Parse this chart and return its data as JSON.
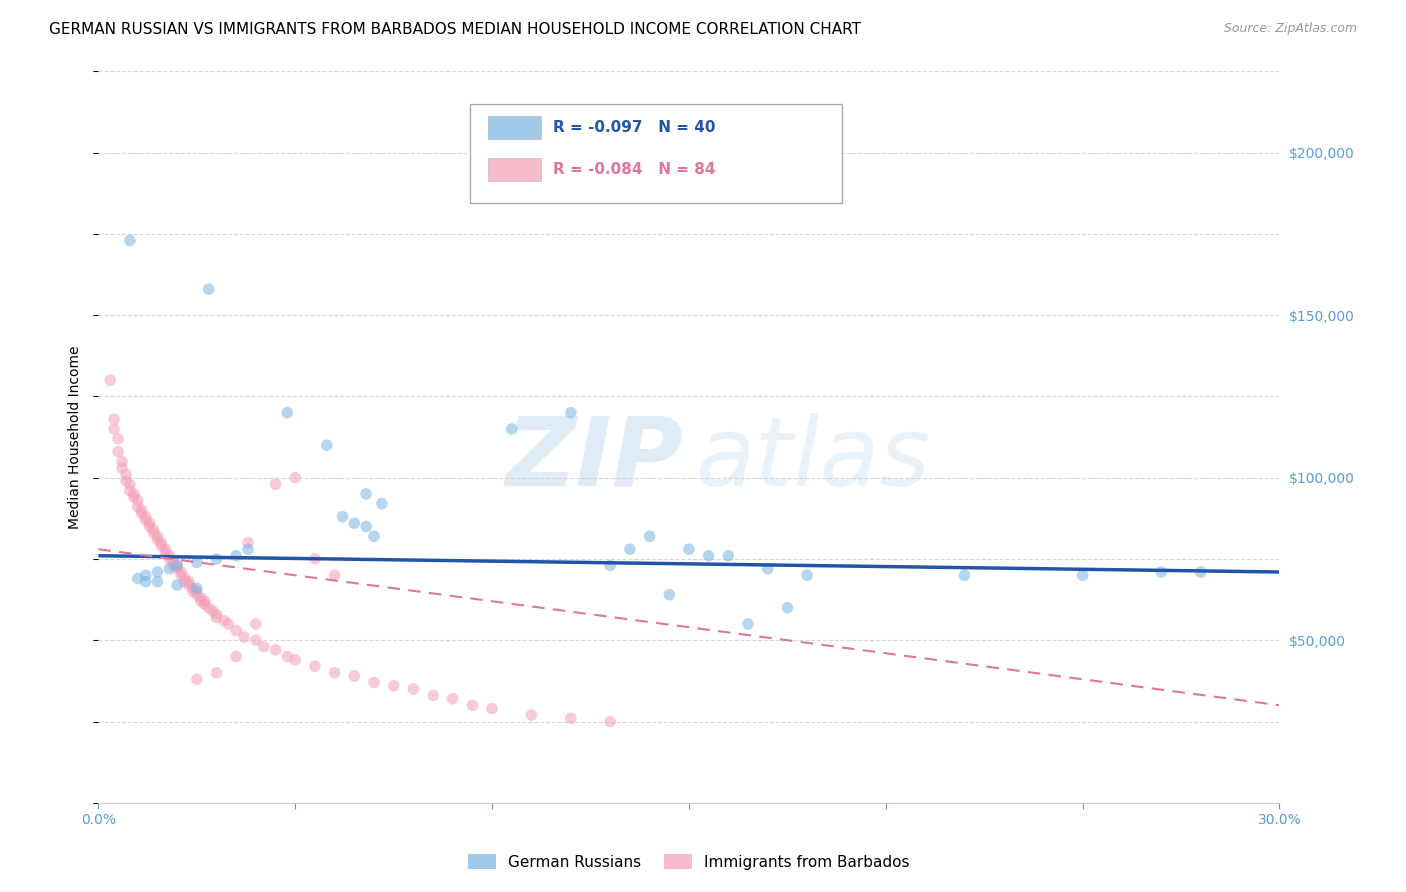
{
  "title": "GERMAN RUSSIAN VS IMMIGRANTS FROM BARBADOS MEDIAN HOUSEHOLD INCOME CORRELATION CHART",
  "source": "Source: ZipAtlas.com",
  "ylabel": "Median Household Income",
  "xlim": [
    0.0,
    0.3
  ],
  "ylim": [
    0,
    225000
  ],
  "yticks": [
    50000,
    100000,
    150000,
    200000
  ],
  "ytick_labels": [
    "$50,000",
    "$100,000",
    "$150,000",
    "$200,000"
  ],
  "xticks": [
    0.0,
    0.05,
    0.1,
    0.15,
    0.2,
    0.25,
    0.3
  ],
  "xtick_labels": [
    "0.0%",
    "",
    "",
    "",
    "",
    "",
    "30.0%"
  ],
  "axis_color": "#5b9bd5",
  "legend_blue_label": "German Russians",
  "legend_pink_label": "Immigrants from Barbados",
  "legend_blue_R": "R = -0.097",
  "legend_blue_N": "N = 40",
  "legend_pink_R": "R = -0.084",
  "legend_pink_N": "N = 84",
  "blue_scatter_x": [
    0.008,
    0.028,
    0.12,
    0.105,
    0.048,
    0.058,
    0.068,
    0.072,
    0.062,
    0.065,
    0.068,
    0.07,
    0.038,
    0.035,
    0.03,
    0.025,
    0.02,
    0.018,
    0.015,
    0.012,
    0.01,
    0.012,
    0.015,
    0.02,
    0.025,
    0.14,
    0.15,
    0.155,
    0.145,
    0.16,
    0.165,
    0.17,
    0.175,
    0.18,
    0.22,
    0.25,
    0.27,
    0.28,
    0.13,
    0.135
  ],
  "blue_scatter_y": [
    173000,
    158000,
    120000,
    115000,
    120000,
    110000,
    95000,
    92000,
    88000,
    86000,
    85000,
    82000,
    78000,
    76000,
    75000,
    74000,
    73000,
    72000,
    71000,
    70000,
    69000,
    68000,
    68000,
    67000,
    66000,
    82000,
    78000,
    76000,
    64000,
    76000,
    55000,
    72000,
    60000,
    70000,
    70000,
    70000,
    71000,
    71000,
    73000,
    78000
  ],
  "pink_scatter_x": [
    0.003,
    0.004,
    0.004,
    0.005,
    0.005,
    0.006,
    0.006,
    0.007,
    0.007,
    0.008,
    0.008,
    0.009,
    0.009,
    0.01,
    0.01,
    0.011,
    0.011,
    0.012,
    0.012,
    0.013,
    0.013,
    0.014,
    0.014,
    0.015,
    0.015,
    0.016,
    0.016,
    0.017,
    0.017,
    0.018,
    0.018,
    0.019,
    0.019,
    0.02,
    0.02,
    0.021,
    0.021,
    0.022,
    0.022,
    0.023,
    0.023,
    0.024,
    0.024,
    0.025,
    0.025,
    0.026,
    0.026,
    0.027,
    0.027,
    0.028,
    0.029,
    0.03,
    0.03,
    0.032,
    0.033,
    0.035,
    0.037,
    0.04,
    0.042,
    0.045,
    0.048,
    0.05,
    0.055,
    0.06,
    0.065,
    0.07,
    0.075,
    0.08,
    0.085,
    0.09,
    0.095,
    0.1,
    0.11,
    0.12,
    0.13,
    0.05,
    0.038,
    0.045,
    0.055,
    0.06,
    0.04,
    0.035,
    0.03,
    0.025
  ],
  "pink_scatter_y": [
    130000,
    118000,
    115000,
    112000,
    108000,
    105000,
    103000,
    101000,
    99000,
    98000,
    96000,
    95000,
    94000,
    93000,
    91000,
    90000,
    89000,
    88000,
    87000,
    86000,
    85000,
    84000,
    83000,
    82000,
    81000,
    80000,
    79000,
    78000,
    77000,
    76000,
    75000,
    74000,
    73000,
    73000,
    72000,
    71000,
    70000,
    69000,
    68000,
    68000,
    67000,
    66000,
    65000,
    65000,
    64000,
    63000,
    62000,
    62000,
    61000,
    60000,
    59000,
    58000,
    57000,
    56000,
    55000,
    53000,
    51000,
    50000,
    48000,
    47000,
    45000,
    44000,
    42000,
    40000,
    39000,
    37000,
    36000,
    35000,
    33000,
    32000,
    30000,
    29000,
    27000,
    26000,
    25000,
    100000,
    80000,
    98000,
    75000,
    70000,
    55000,
    45000,
    40000,
    38000
  ],
  "blue_line_x": [
    0.0,
    0.3
  ],
  "blue_line_y": [
    76000,
    71000
  ],
  "pink_line_x": [
    0.0,
    0.3
  ],
  "pink_line_y": [
    78000,
    30000
  ],
  "background_color": "#ffffff",
  "scatter_alpha": 0.55,
  "scatter_size": 70,
  "blue_color": "#7ab3e0",
  "pink_color": "#f4a0b5",
  "blue_line_color": "#2255aa",
  "pink_line_color": "#dd7799",
  "grid_color": "#cccccc",
  "title_fontsize": 11,
  "axis_label_fontsize": 10,
  "tick_label_fontsize": 10,
  "source_text": "Source: ZipAtlas.com"
}
